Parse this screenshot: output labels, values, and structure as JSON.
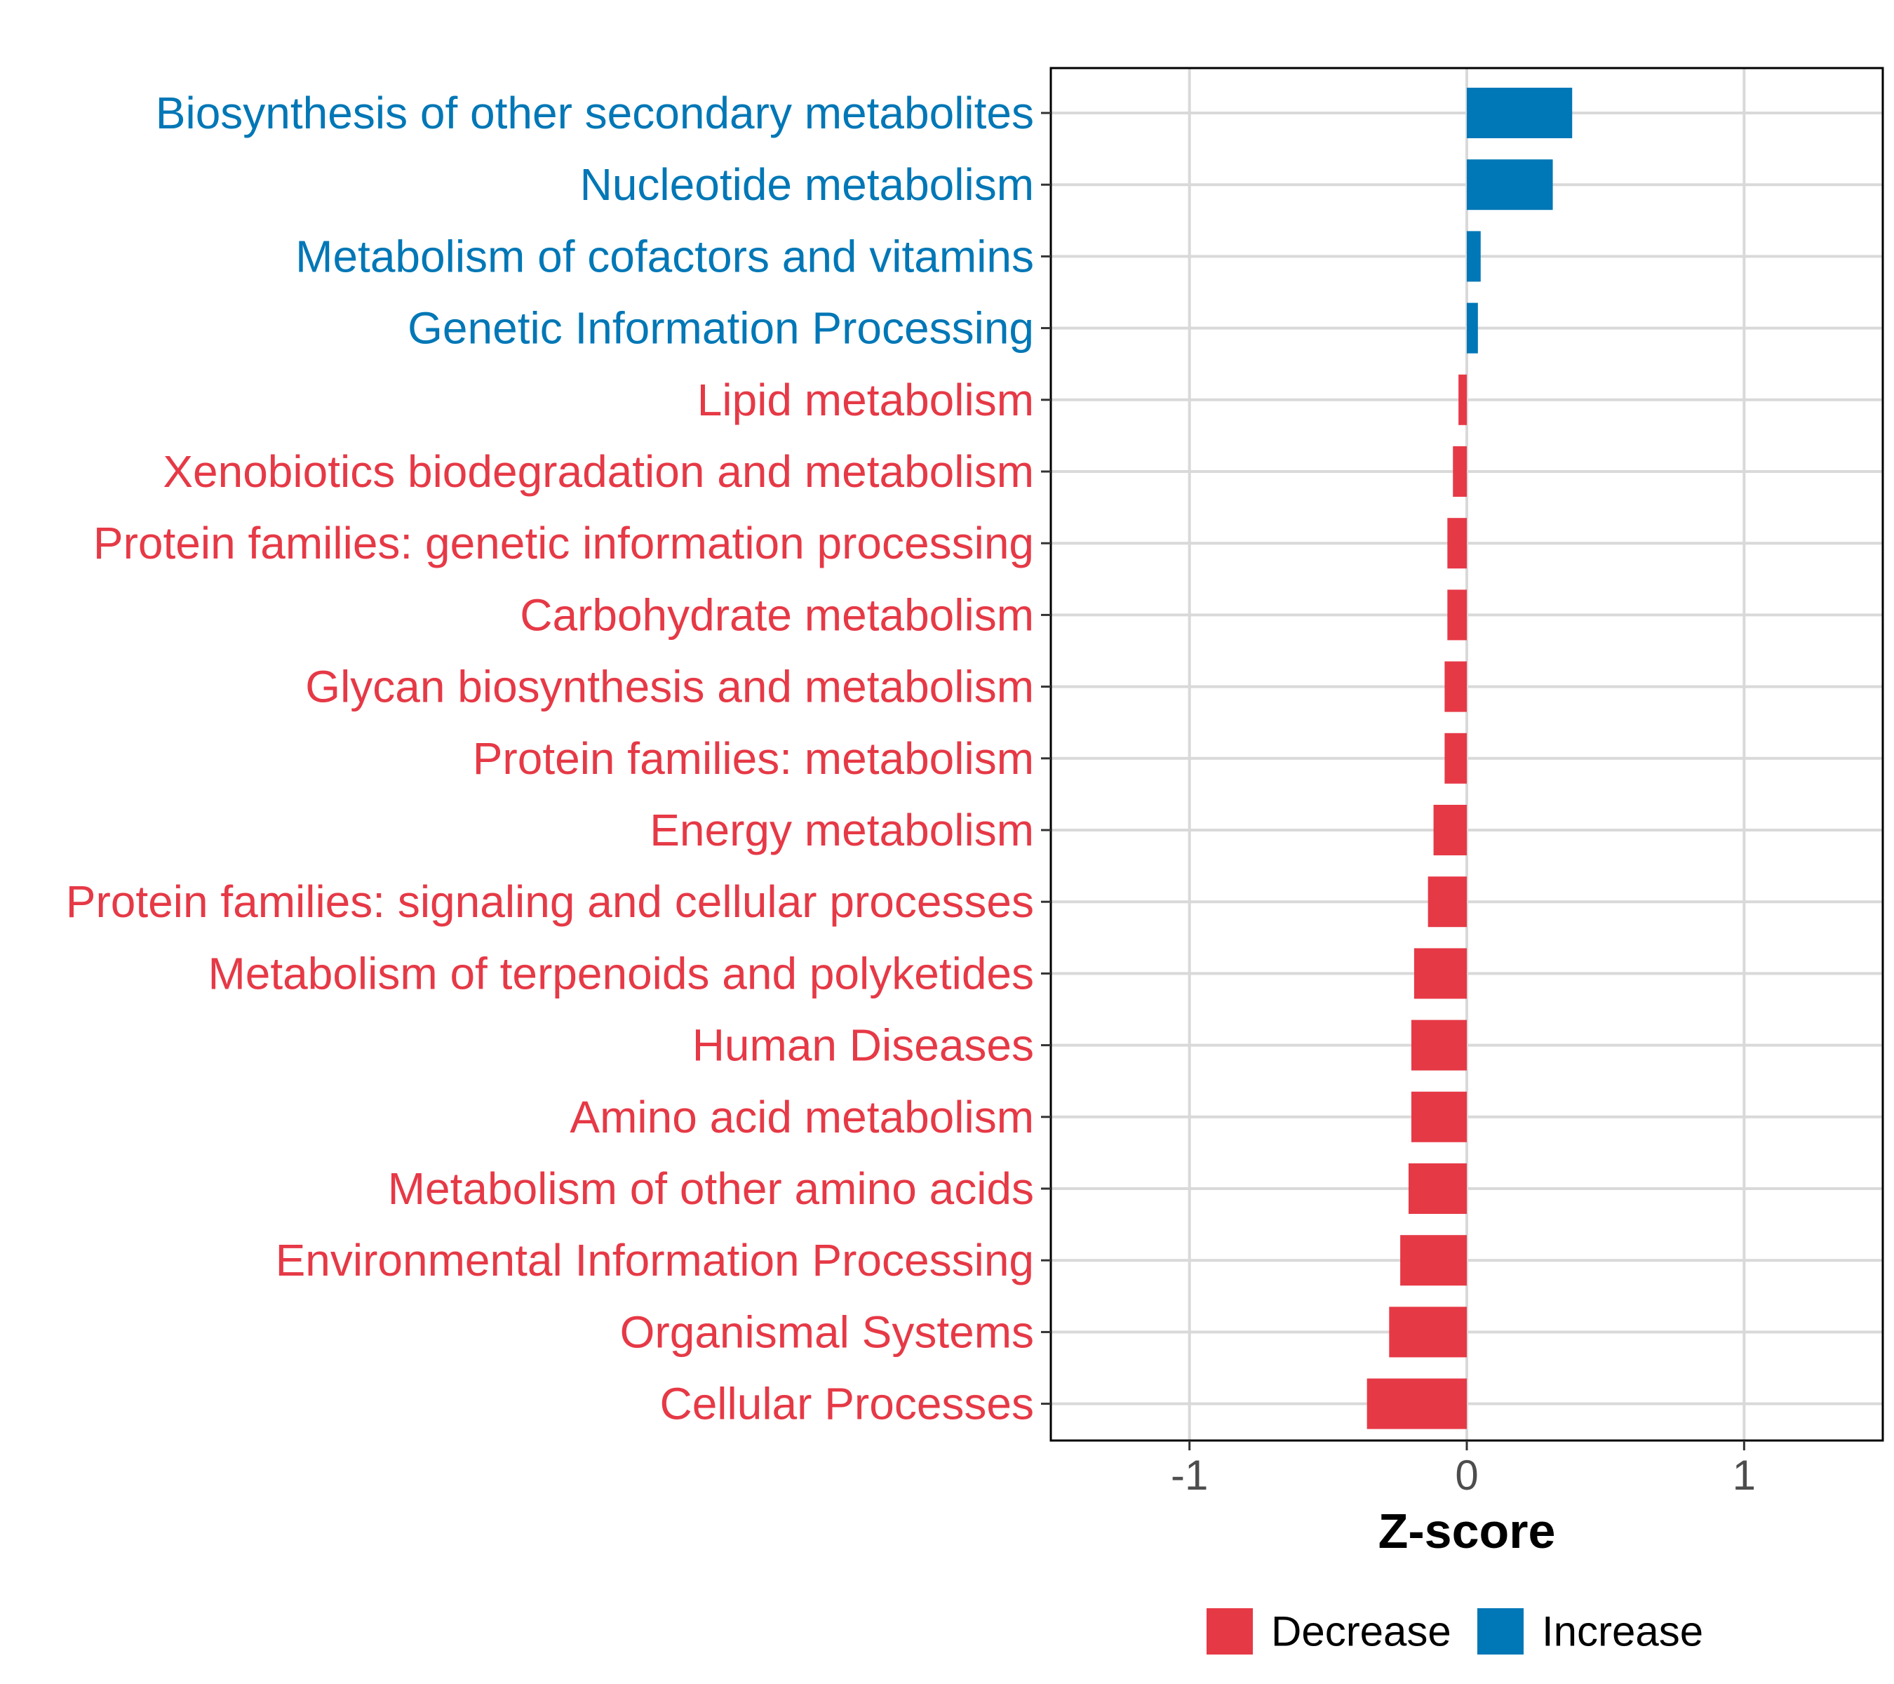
{
  "chart_data": {
    "type": "bar",
    "orientation": "horizontal",
    "title": "",
    "xlabel": "Z-score",
    "ylabel": "",
    "xlim": [
      -1.5,
      1.5
    ],
    "xticks": [
      -1,
      0,
      1
    ],
    "xtick_labels": [
      "-1",
      "0",
      "1"
    ],
    "grid": true,
    "legend_position": "bottom",
    "colors": {
      "Decrease": "#E63946",
      "Increase": "#0077B6"
    },
    "legend": [
      {
        "label": "Decrease",
        "color": "#E63946"
      },
      {
        "label": "Increase",
        "color": "#0077B6"
      }
    ],
    "bars": [
      {
        "category": "Biosynthesis of other secondary metabolites",
        "value": 0.38,
        "direction": "Increase"
      },
      {
        "category": "Nucleotide metabolism",
        "value": 0.31,
        "direction": "Increase"
      },
      {
        "category": "Metabolism of cofactors and vitamins",
        "value": 0.05,
        "direction": "Increase"
      },
      {
        "category": "Genetic Information Processing",
        "value": 0.04,
        "direction": "Increase"
      },
      {
        "category": "Lipid metabolism",
        "value": -0.03,
        "direction": "Decrease"
      },
      {
        "category": "Xenobiotics biodegradation and metabolism",
        "value": -0.05,
        "direction": "Decrease"
      },
      {
        "category": "Protein families: genetic information processing",
        "value": -0.07,
        "direction": "Decrease"
      },
      {
        "category": "Carbohydrate metabolism",
        "value": -0.07,
        "direction": "Decrease"
      },
      {
        "category": "Glycan biosynthesis and metabolism",
        "value": -0.08,
        "direction": "Decrease"
      },
      {
        "category": "Protein families: metabolism",
        "value": -0.08,
        "direction": "Decrease"
      },
      {
        "category": "Energy metabolism",
        "value": -0.12,
        "direction": "Decrease"
      },
      {
        "category": "Protein families: signaling and cellular processes",
        "value": -0.14,
        "direction": "Decrease"
      },
      {
        "category": "Metabolism of terpenoids and polyketides",
        "value": -0.19,
        "direction": "Decrease"
      },
      {
        "category": "Human Diseases",
        "value": -0.2,
        "direction": "Decrease"
      },
      {
        "category": "Amino acid metabolism",
        "value": -0.2,
        "direction": "Decrease"
      },
      {
        "category": "Metabolism of other amino acids",
        "value": -0.21,
        "direction": "Decrease"
      },
      {
        "category": "Environmental Information Processing",
        "value": -0.24,
        "direction": "Decrease"
      },
      {
        "category": "Organismal Systems",
        "value": -0.28,
        "direction": "Decrease"
      },
      {
        "category": "Cellular Processes",
        "value": -0.36,
        "direction": "Decrease"
      }
    ]
  }
}
